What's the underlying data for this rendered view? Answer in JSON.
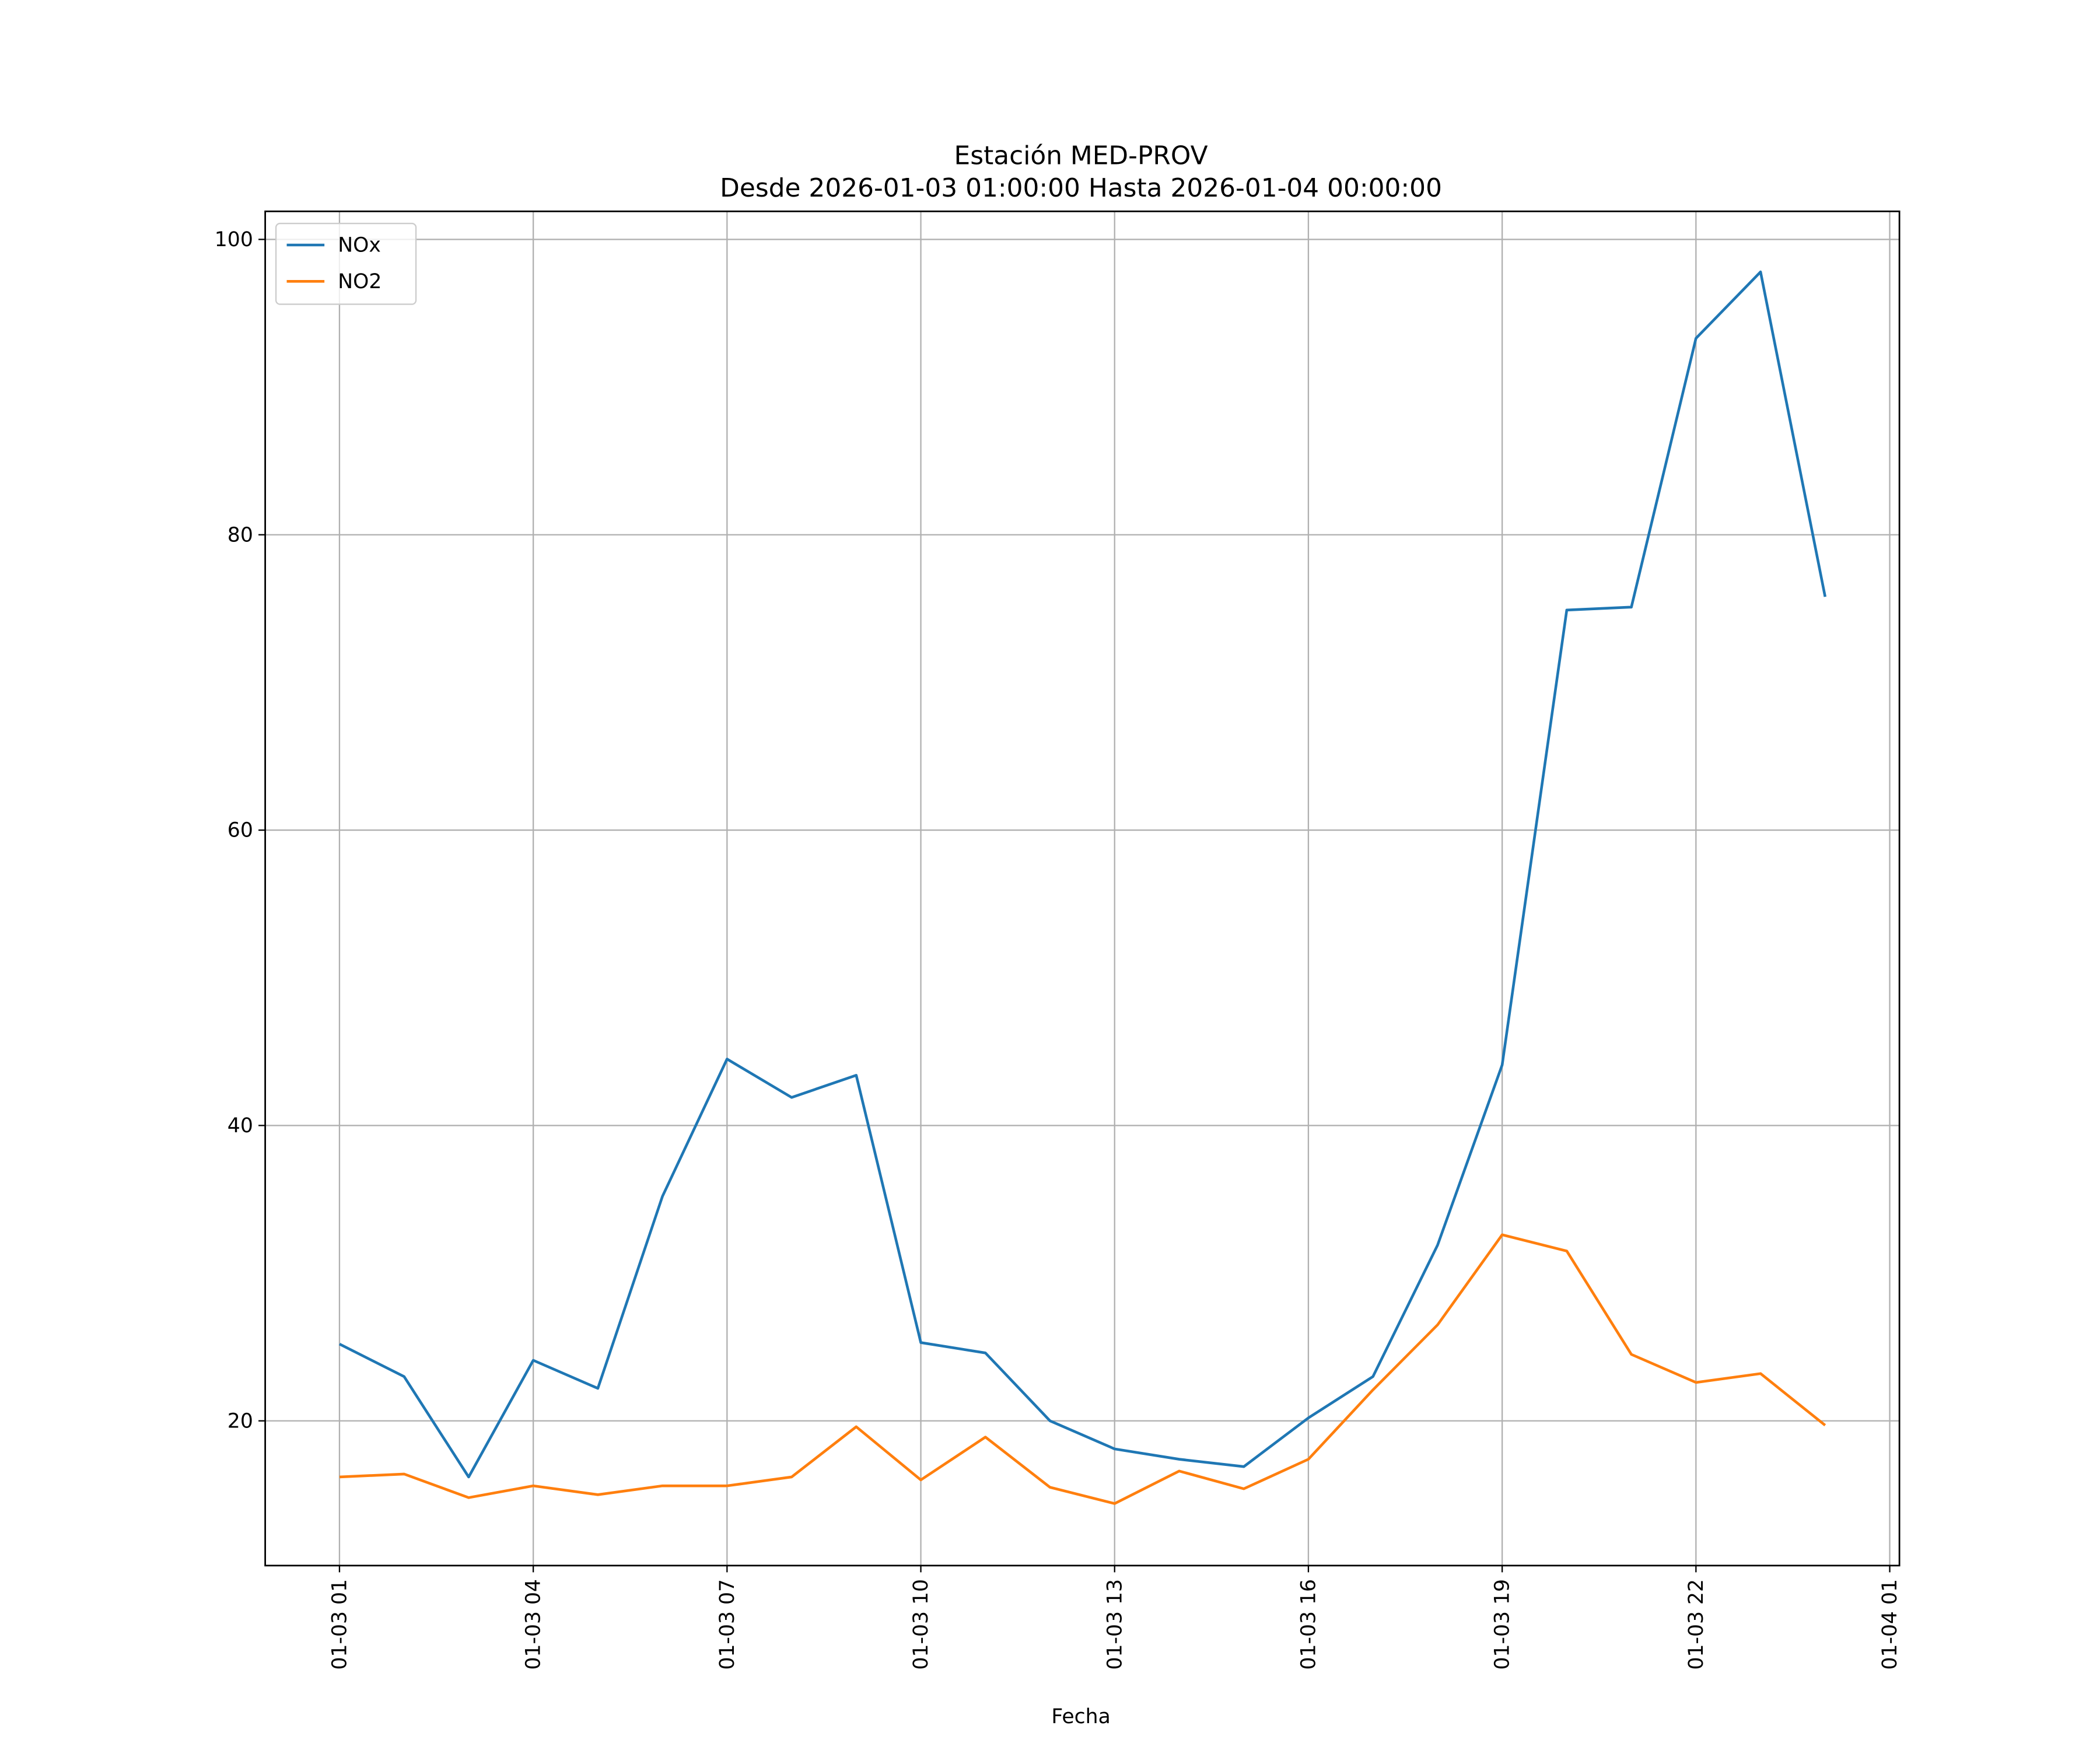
{
  "chart_data": {
    "type": "line",
    "title": "Estación MED-PROV",
    "subtitle": "Desde 2026-01-03 01:00:00 Hasta 2026-01-04 00:00:00",
    "xlabel": "Fecha",
    "ylabel": "",
    "x_hours": [
      1,
      2,
      3,
      4,
      5,
      6,
      7,
      8,
      9,
      10,
      11,
      12,
      13,
      14,
      15,
      16,
      17,
      18,
      19,
      20,
      21,
      22,
      23,
      24
    ],
    "xlim_hours": [
      -0.15,
      25.15
    ],
    "ylim": [
      10.2,
      101.9
    ],
    "yticks": [
      20,
      40,
      60,
      80,
      100
    ],
    "xticks": [
      {
        "hour": 1,
        "label": "01-03 01"
      },
      {
        "hour": 4,
        "label": "01-03 04"
      },
      {
        "hour": 7,
        "label": "01-03 07"
      },
      {
        "hour": 10,
        "label": "01-03 10"
      },
      {
        "hour": 13,
        "label": "01-03 13"
      },
      {
        "hour": 16,
        "label": "01-03 16"
      },
      {
        "hour": 19,
        "label": "01-03 19"
      },
      {
        "hour": 22,
        "label": "01-03 22"
      },
      {
        "hour": 25,
        "label": "01-04 01"
      }
    ],
    "grid": true,
    "legend_position": "top-left",
    "series": [
      {
        "name": "NOx",
        "color": "#1f77b4",
        "values": [
          25.2,
          23.0,
          16.2,
          24.1,
          22.2,
          35.2,
          44.5,
          41.9,
          43.4,
          25.3,
          24.6,
          20.0,
          18.1,
          17.4,
          16.9,
          20.2,
          23.0,
          31.9,
          44.1,
          74.9,
          75.1,
          93.3,
          97.8,
          75.8
        ]
      },
      {
        "name": "NO2",
        "color": "#ff7f0e",
        "values": [
          16.2,
          16.4,
          14.8,
          15.6,
          15.0,
          15.6,
          15.6,
          16.2,
          19.6,
          16.0,
          18.9,
          15.5,
          14.4,
          16.6,
          15.4,
          17.4,
          22.1,
          26.5,
          32.6,
          31.5,
          24.5,
          22.6,
          23.2,
          19.7
        ]
      }
    ]
  }
}
